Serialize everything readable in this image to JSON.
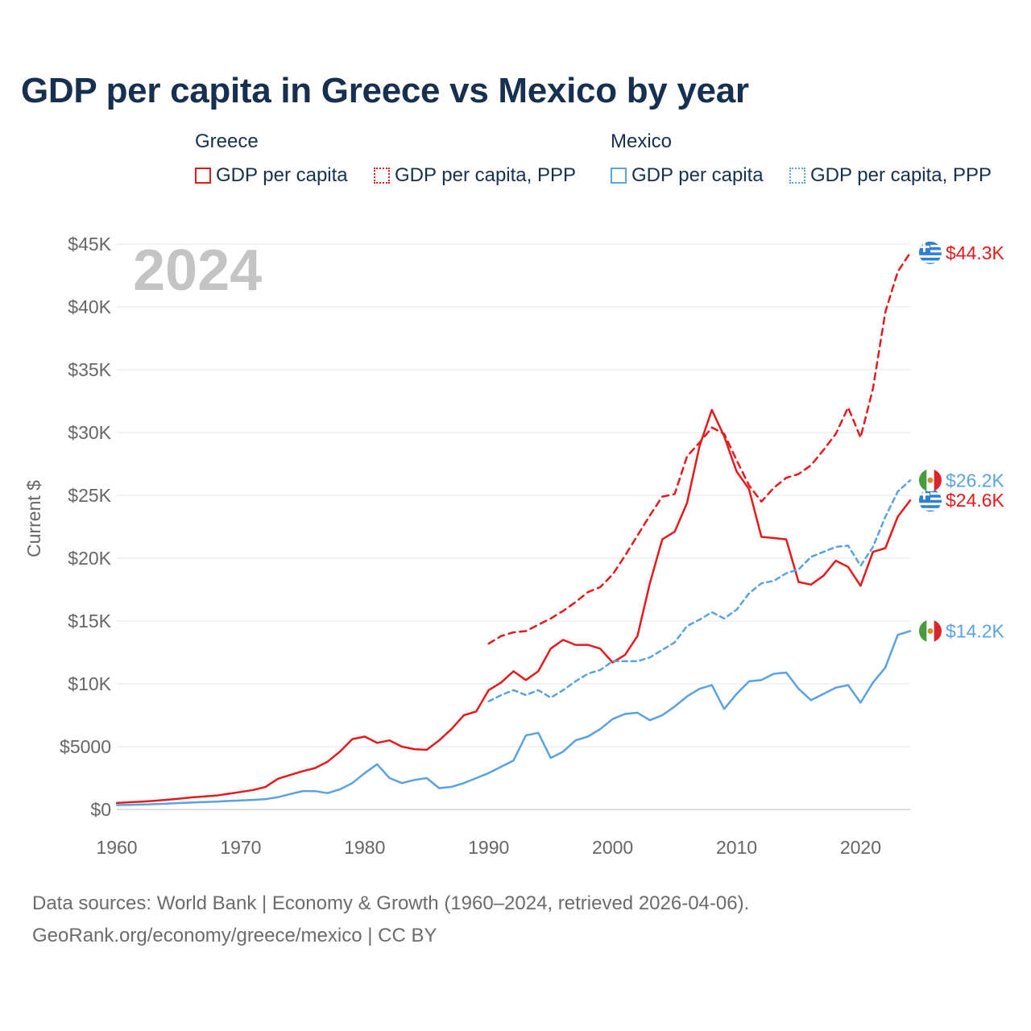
{
  "title": "GDP per capita in Greece vs Mexico by year",
  "legend": {
    "groups": [
      {
        "name": "Greece",
        "color": "#e41a1c",
        "items": [
          {
            "label": "GDP per capita",
            "style": "solid"
          },
          {
            "label": "GDP per capita, PPP",
            "style": "dotted"
          }
        ]
      },
      {
        "name": "Mexico",
        "color": "#5aa2e0",
        "items": [
          {
            "label": "GDP per capita",
            "style": "solid"
          },
          {
            "label": "GDP per capita, PPP",
            "style": "dotted"
          }
        ]
      }
    ]
  },
  "year_badge": "2024",
  "footer": {
    "line1": "Data sources: World Bank | Economy & Growth (1960–2024, retrieved 2026-04-06).",
    "line2": "GeoRank.org/economy/greece/mexico | CC BY"
  },
  "chart_data": {
    "type": "line",
    "title": "GDP per capita in Greece vs Mexico by year",
    "xlabel": "",
    "ylabel": "Current $",
    "xlim": [
      1960,
      2024
    ],
    "ylim": [
      0,
      45000
    ],
    "xticks": [
      1960,
      1970,
      1980,
      1990,
      2000,
      2010,
      2020
    ],
    "xtick_labels": [
      "1960",
      "1970",
      "1980",
      "1990",
      "2000",
      "2010",
      "2020"
    ],
    "yticks": [
      0,
      5000,
      10000,
      15000,
      20000,
      25000,
      30000,
      35000,
      40000,
      45000
    ],
    "ytick_labels": [
      "$0",
      "$5000",
      "$10K",
      "$15K",
      "$20K",
      "$25K",
      "$30K",
      "$35K",
      "$40K",
      "$45K"
    ],
    "grid": true,
    "series": [
      {
        "name": "Greece GDP per capita",
        "country": "Greece",
        "style": "solid",
        "color": "#e41a1c",
        "x": [
          1960,
          1961,
          1962,
          1963,
          1964,
          1965,
          1966,
          1967,
          1968,
          1969,
          1970,
          1971,
          1972,
          1973,
          1974,
          1975,
          1976,
          1977,
          1978,
          1979,
          1980,
          1981,
          1982,
          1983,
          1984,
          1985,
          1986,
          1987,
          1988,
          1989,
          1990,
          1991,
          1992,
          1993,
          1994,
          1995,
          1996,
          1997,
          1998,
          1999,
          2000,
          2001,
          2002,
          2003,
          2004,
          2005,
          2006,
          2007,
          2008,
          2009,
          2010,
          2011,
          2012,
          2013,
          2014,
          2015,
          2016,
          2017,
          2018,
          2019,
          2020,
          2021,
          2022,
          2023,
          2024
        ],
        "y": [
          520,
          580,
          620,
          690,
          770,
          860,
          960,
          1030,
          1100,
          1250,
          1400,
          1550,
          1800,
          2450,
          2750,
          3050,
          3300,
          3800,
          4600,
          5600,
          5800,
          5300,
          5500,
          5000,
          4800,
          4750,
          5500,
          6400,
          7500,
          7800,
          9500,
          10100,
          11000,
          10300,
          11000,
          12800,
          13500,
          13100,
          13100,
          12800,
          11700,
          12300,
          13800,
          18000,
          21500,
          22100,
          24400,
          28900,
          31800,
          29700,
          26900,
          25500,
          21700,
          21600,
          21500,
          18100,
          17900,
          18600,
          19800,
          19300,
          17800,
          20500,
          20800,
          23300,
          24600
        ],
        "end_label": "$24.6K"
      },
      {
        "name": "Greece GDP per capita, PPP",
        "country": "Greece",
        "style": "dotted",
        "color": "#e41a1c",
        "x": [
          1990,
          1991,
          1992,
          1993,
          1994,
          1995,
          1996,
          1997,
          1998,
          1999,
          2000,
          2001,
          2002,
          2003,
          2004,
          2005,
          2006,
          2007,
          2008,
          2009,
          2010,
          2011,
          2012,
          2013,
          2014,
          2015,
          2016,
          2017,
          2018,
          2019,
          2020,
          2021,
          2022,
          2023,
          2024
        ],
        "y": [
          13200,
          13800,
          14100,
          14200,
          14700,
          15200,
          15800,
          16500,
          17300,
          17700,
          18700,
          20200,
          21800,
          23400,
          24900,
          25100,
          28100,
          29200,
          30400,
          29900,
          27800,
          25800,
          24500,
          25600,
          26400,
          26700,
          27400,
          28600,
          29900,
          32000,
          29600,
          33500,
          39600,
          42800,
          44300
        ],
        "end_label": "$44.3K"
      },
      {
        "name": "Mexico GDP per capita",
        "country": "Mexico",
        "style": "solid",
        "color": "#5aa2e0",
        "x": [
          1960,
          1961,
          1962,
          1963,
          1964,
          1965,
          1966,
          1967,
          1968,
          1969,
          1970,
          1971,
          1972,
          1973,
          1974,
          1975,
          1976,
          1977,
          1978,
          1979,
          1980,
          1981,
          1982,
          1983,
          1984,
          1985,
          1986,
          1987,
          1988,
          1989,
          1990,
          1991,
          1992,
          1993,
          1994,
          1995,
          1996,
          1997,
          1998,
          1999,
          2000,
          2001,
          2002,
          2003,
          2004,
          2005,
          2006,
          2007,
          2008,
          2009,
          2010,
          2011,
          2012,
          2013,
          2014,
          2015,
          2016,
          2017,
          2018,
          2019,
          2020,
          2021,
          2022,
          2023,
          2024
        ],
        "y": [
          350,
          370,
          390,
          420,
          470,
          510,
          550,
          590,
          620,
          680,
          720,
          760,
          830,
          980,
          1230,
          1470,
          1460,
          1300,
          1600,
          2100,
          2900,
          3600,
          2500,
          2100,
          2350,
          2500,
          1700,
          1800,
          2100,
          2500,
          2900,
          3400,
          3900,
          5900,
          6100,
          4100,
          4600,
          5500,
          5800,
          6400,
          7200,
          7600,
          7700,
          7100,
          7500,
          8200,
          9000,
          9600,
          9900,
          8000,
          9200,
          10200,
          10300,
          10800,
          10900,
          9600,
          8700,
          9200,
          9700,
          9900,
          8500,
          10100,
          11300,
          13900,
          14200
        ],
        "end_label": "$14.2K"
      },
      {
        "name": "Mexico GDP per capita, PPP",
        "country": "Mexico",
        "style": "dotted",
        "color": "#5aa2e0",
        "x": [
          1990,
          1991,
          1992,
          1993,
          1994,
          1995,
          1996,
          1997,
          1998,
          1999,
          2000,
          2001,
          2002,
          2003,
          2004,
          2005,
          2006,
          2007,
          2008,
          2009,
          2010,
          2011,
          2012,
          2013,
          2014,
          2015,
          2016,
          2017,
          2018,
          2019,
          2020,
          2021,
          2022,
          2023,
          2024
        ],
        "y": [
          8600,
          9100,
          9500,
          9100,
          9500,
          8900,
          9500,
          10200,
          10800,
          11100,
          11800,
          11800,
          11800,
          12100,
          12700,
          13300,
          14600,
          15100,
          15700,
          15200,
          15900,
          17200,
          18000,
          18200,
          18800,
          19100,
          20100,
          20500,
          20900,
          21000,
          19400,
          20900,
          23300,
          25300,
          26200
        ],
        "end_label": "$26.2K"
      }
    ]
  }
}
